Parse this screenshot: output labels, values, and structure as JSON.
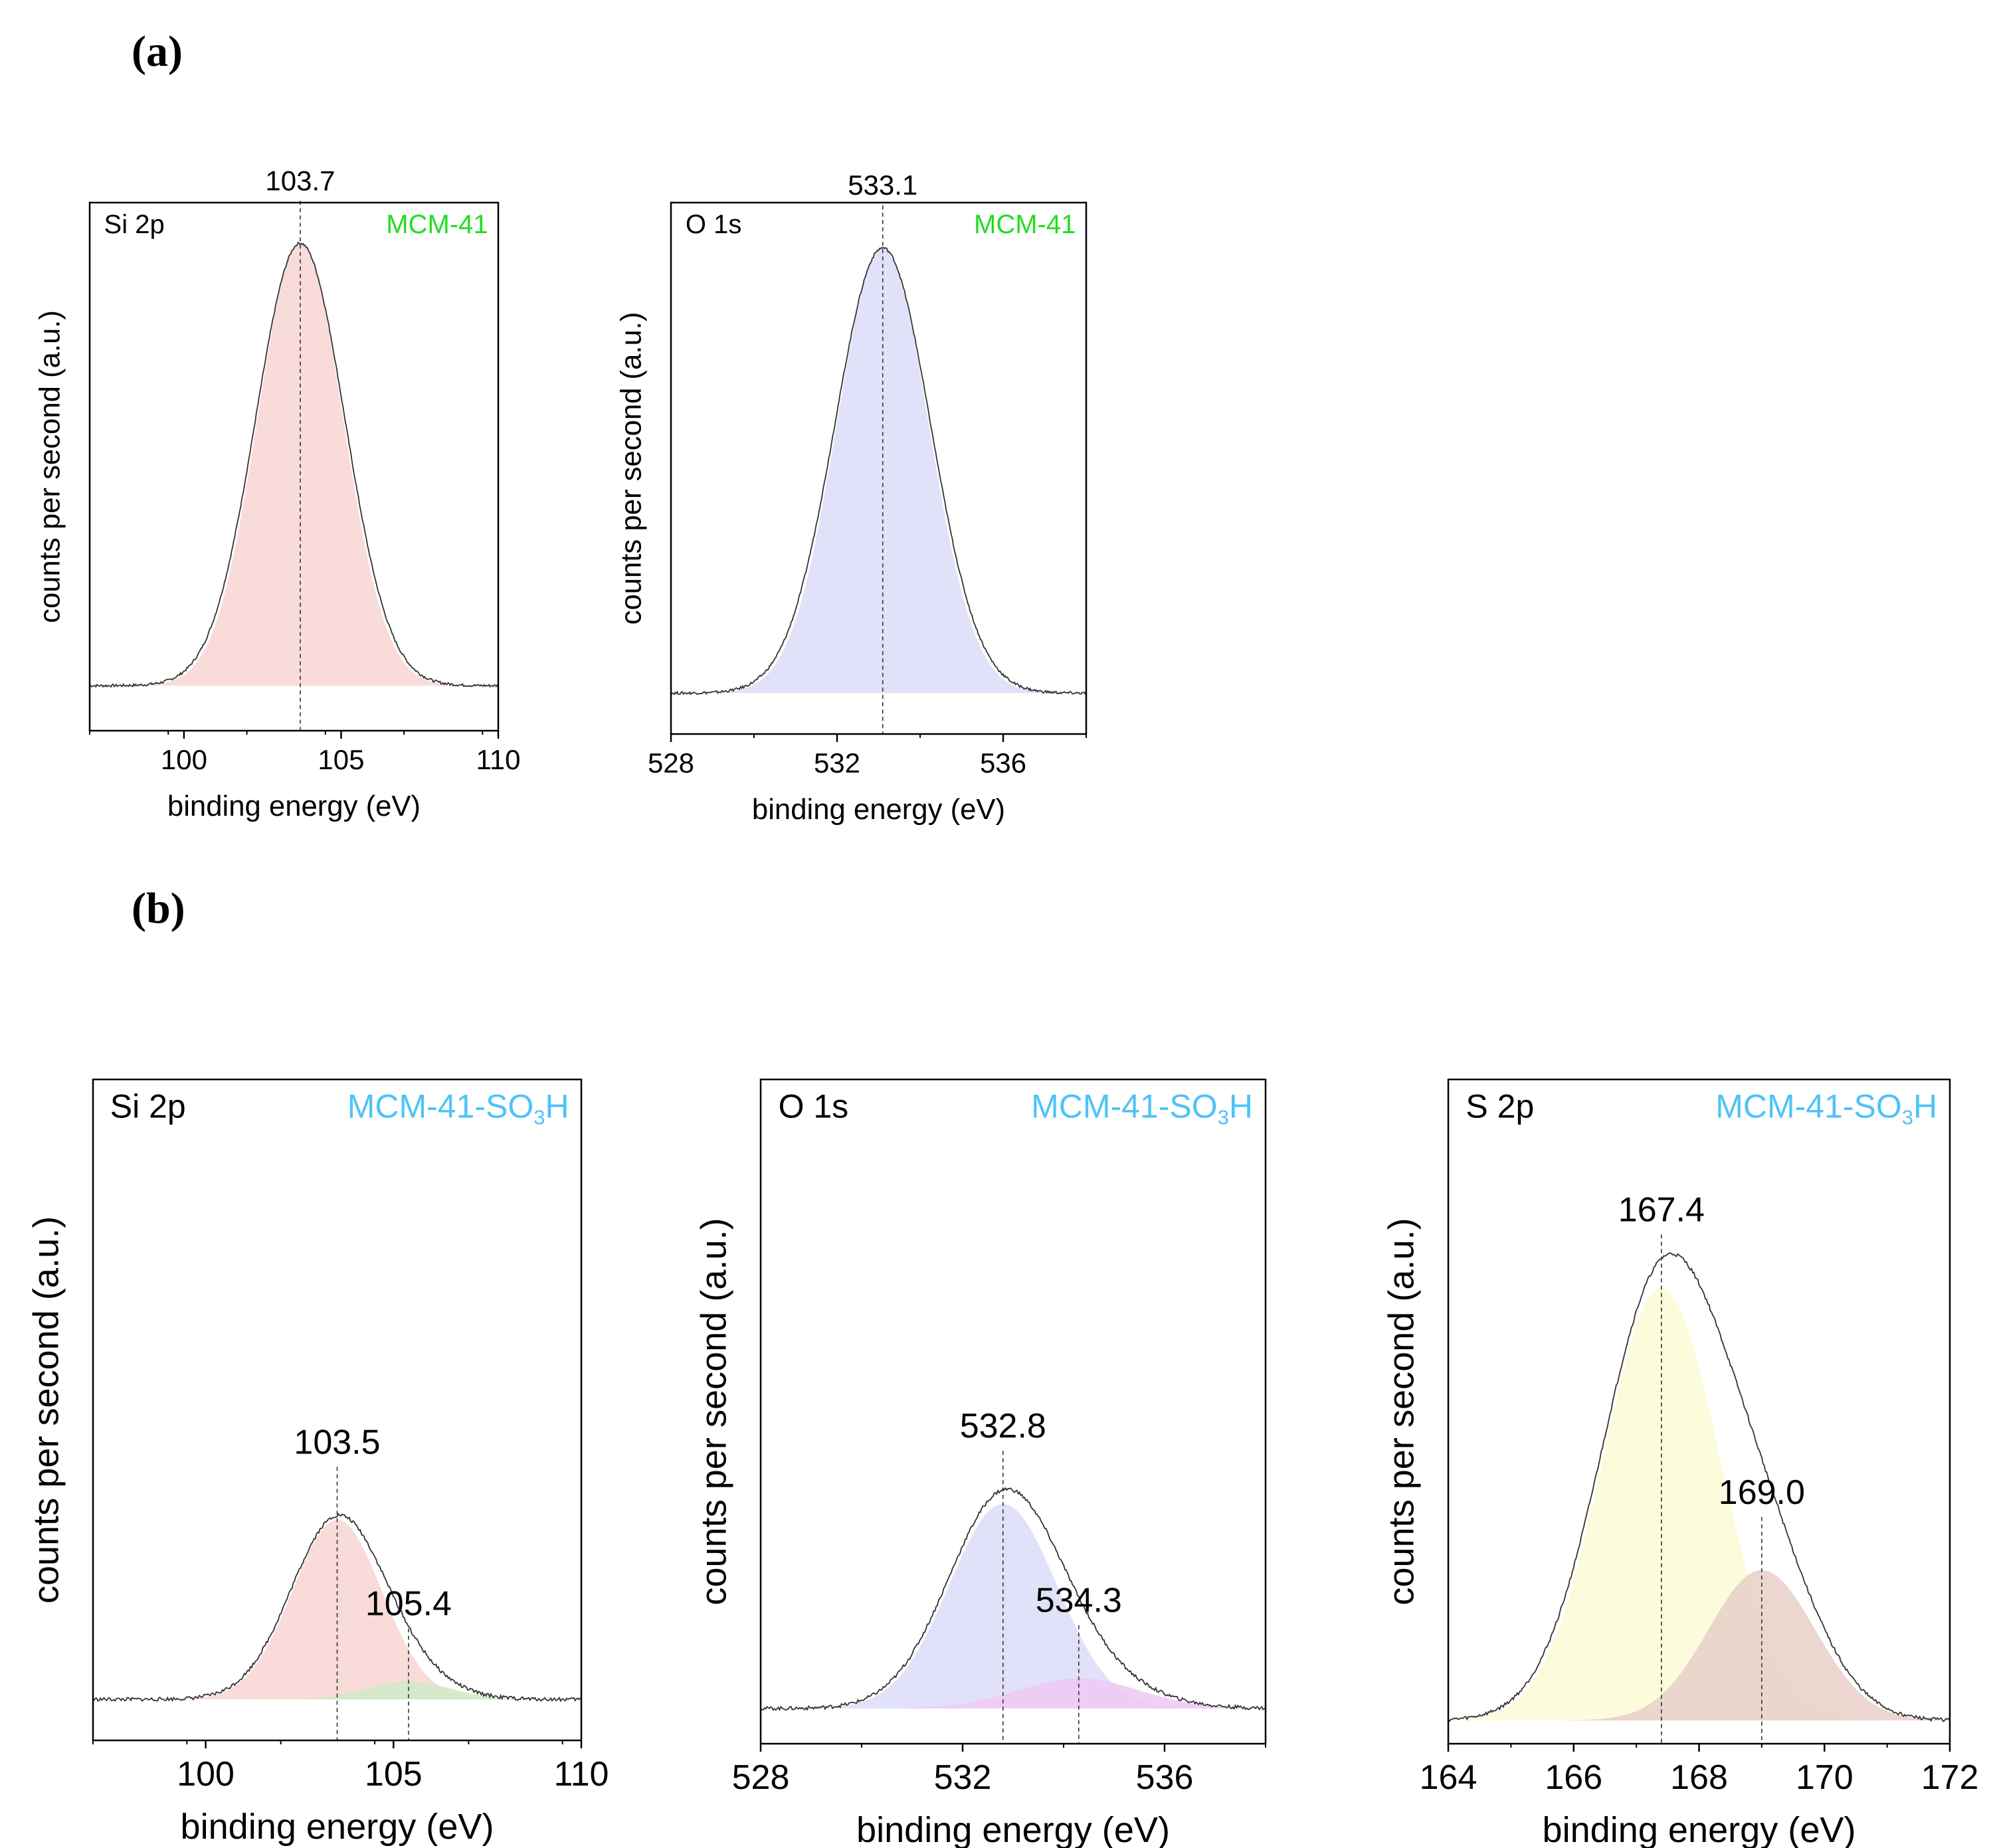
{
  "panel_labels": {
    "a": "(a)",
    "b": "(b)"
  },
  "colors": {
    "mcm41": "#22dd22",
    "mcm41so3h": "#4fc3f7",
    "si_fill": "#f8d6d3",
    "o_fill": "#dcdcf8",
    "s_fill1": "#fbfbd7",
    "s_fill2": "#e8cfc8",
    "o_fill2": "#efc8f5",
    "si_fill2": "#cfeac6",
    "envelope": "#333333"
  },
  "chart_data": [
    {
      "id": "a-si",
      "type": "line",
      "title": "Si 2p",
      "sample": "MCM-41",
      "sample_color": "mcm41",
      "xlabel": "binding energy (eV)",
      "ylabel": "counts per second (a.u.)",
      "xlim": [
        97,
        110
      ],
      "ylim": [
        0,
        1.08
      ],
      "baseline": 0.06,
      "xticks": [
        100,
        105,
        110
      ],
      "peaks": [
        {
          "center": 103.7,
          "label": "103.7",
          "height": 1.0,
          "fwhm": 3.2,
          "fill": "si_fill",
          "line": true
        }
      ]
    },
    {
      "id": "a-o",
      "type": "line",
      "title": "O 1s",
      "sample": "MCM-41",
      "sample_color": "mcm41",
      "xlabel": "binding energy (eV)",
      "ylabel": "counts per second (a.u.)",
      "xlim": [
        528,
        538
      ],
      "ylim": [
        0,
        1.08
      ],
      "baseline": 0.05,
      "xticks": [
        528,
        532,
        536
      ],
      "peaks": [
        {
          "center": 533.1,
          "label": "533.1",
          "height": 1.0,
          "fwhm": 2.6,
          "fill": "o_fill",
          "line": true
        }
      ]
    },
    {
      "id": "b-si",
      "type": "line",
      "title": "Si 2p",
      "sample": "MCM-41-SO",
      "sample_sub": "3",
      "sample_end": "H",
      "sample_color": "mcm41so3h",
      "xlabel": "binding energy (eV)",
      "ylabel": "counts per second (a.u.)",
      "xlim": [
        97,
        110
      ],
      "ylim": [
        0,
        1.0
      ],
      "baseline": 0.03,
      "xticks": [
        100,
        105,
        110
      ],
      "peaks": [
        {
          "center": 103.5,
          "label": "103.5",
          "height": 0.3,
          "fwhm": 2.8,
          "fill": "si_fill",
          "line": true
        },
        {
          "center": 105.4,
          "label": "105.4",
          "height": 0.03,
          "fwhm": 2.6,
          "fill": "si_fill2",
          "line": true
        }
      ]
    },
    {
      "id": "b-o",
      "type": "line",
      "title": "O 1s",
      "sample": "MCM-41-SO",
      "sample_sub": "3",
      "sample_end": "H",
      "sample_color": "mcm41so3h",
      "xlabel": "binding energy (eV)",
      "ylabel": "counts per second (a.u.)",
      "xlim": [
        528,
        538
      ],
      "ylim": [
        0,
        1.0
      ],
      "baseline": 0.02,
      "xticks": [
        528,
        532,
        536
      ],
      "peaks": [
        {
          "center": 532.8,
          "label": "532.8",
          "height": 0.34,
          "fwhm": 2.5,
          "fill": "o_fill",
          "line": true
        },
        {
          "center": 534.3,
          "label": "534.3",
          "height": 0.05,
          "fwhm": 2.8,
          "fill": "o_fill2",
          "line": true
        }
      ]
    },
    {
      "id": "b-s",
      "type": "line",
      "title": "S 2p",
      "sample": "MCM-41-SO",
      "sample_sub": "3",
      "sample_end": "H",
      "sample_color": "mcm41so3h",
      "xlabel": "binding energy (eV)",
      "ylabel": "counts per second (a.u.)",
      "xlim": [
        164,
        172
      ],
      "ylim": [
        0,
        1.0
      ],
      "baseline": 0.0,
      "xticks": [
        164,
        166,
        168,
        170,
        172
      ],
      "peaks": [
        {
          "center": 167.4,
          "label": "167.4",
          "height": 0.72,
          "fwhm": 2.2,
          "fill": "s_fill1",
          "line": true
        },
        {
          "center": 169.0,
          "label": "169.0",
          "height": 0.25,
          "fwhm": 2.0,
          "fill": "s_fill2",
          "line": true
        }
      ]
    }
  ]
}
